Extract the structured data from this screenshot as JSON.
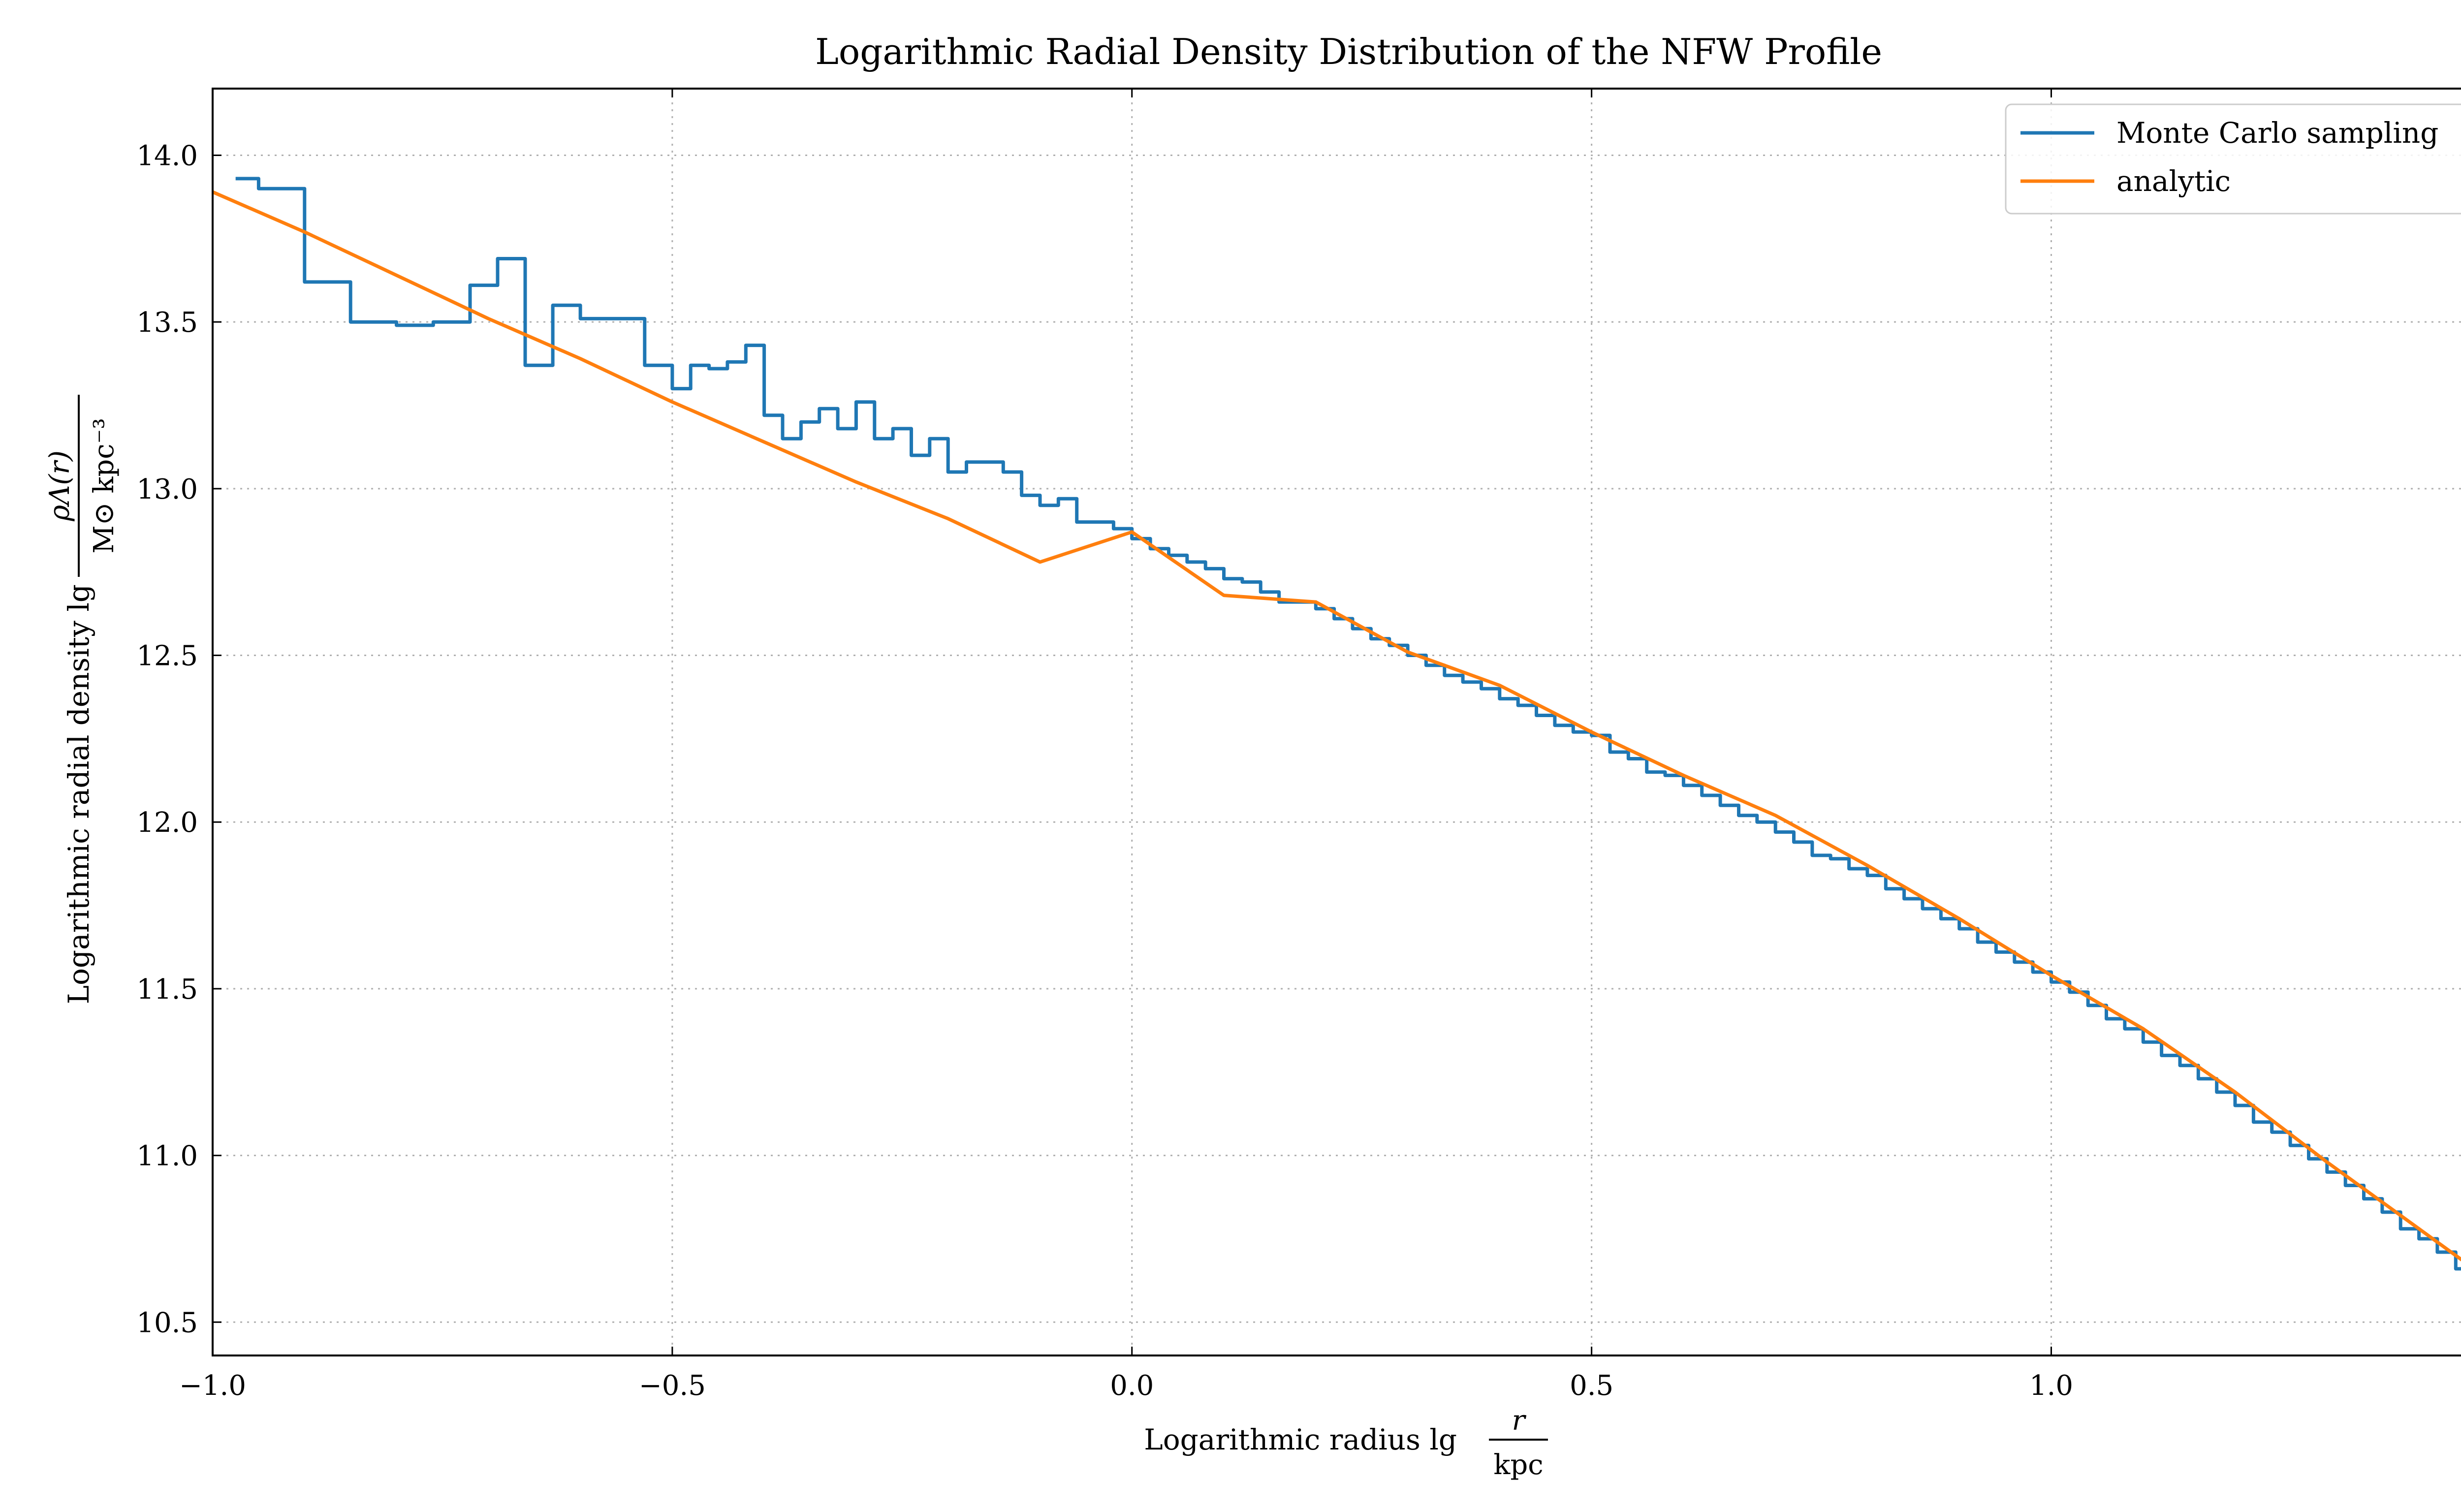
{
  "chart_data": {
    "type": "line",
    "title": "Logarithmic Radial Density Distribution of the NFW Profile",
    "xlabel_prefix": "Logarithmic radius lg",
    "xlabel_numerator": "r",
    "xlabel_denominator": "kpc",
    "ylabel_prefix": "Logarithmic radial density lg",
    "ylabel_numerator": "ρΛ(r)",
    "ylabel_denominator": "M⊙ kpc⁻³",
    "xlim": [
      -1.0,
      1.48
    ],
    "ylim": [
      10.4,
      14.2
    ],
    "x_ticks": [
      -1.0,
      -0.5,
      0.0,
      0.5,
      1.0
    ],
    "x_tick_labels": [
      "−1.0",
      "−0.5",
      "0.0",
      "0.5",
      "1.0"
    ],
    "y_ticks": [
      10.5,
      11.0,
      11.5,
      12.0,
      12.5,
      13.0,
      13.5,
      14.0
    ],
    "y_tick_labels": [
      "10.5",
      "11.0",
      "11.5",
      "12.0",
      "12.5",
      "13.0",
      "13.5",
      "14.0"
    ],
    "grid": true,
    "legend_position": "top-right",
    "series": [
      {
        "name": "Monte Carlo sampling",
        "color": "#1f77b4",
        "style": "step",
        "x": [
          -0.975,
          -0.95,
          -0.9,
          -0.85,
          -0.8,
          -0.76,
          -0.72,
          -0.69,
          -0.66,
          -0.63,
          -0.6,
          -0.56,
          -0.53,
          -0.5,
          -0.48,
          -0.46,
          -0.44,
          -0.42,
          -0.4,
          -0.38,
          -0.36,
          -0.34,
          -0.32,
          -0.3,
          -0.28,
          -0.26,
          -0.24,
          -0.22,
          -0.2,
          -0.18,
          -0.16,
          -0.14,
          -0.12,
          -0.1,
          -0.08,
          -0.06,
          -0.04,
          -0.02,
          0.0,
          0.02,
          0.04,
          0.06,
          0.08,
          0.1,
          0.12,
          0.14,
          0.16,
          0.18,
          0.2,
          0.22,
          0.24,
          0.26,
          0.28,
          0.3,
          0.32,
          0.34,
          0.36,
          0.38,
          0.4,
          0.42,
          0.44,
          0.46,
          0.48,
          0.5,
          0.52,
          0.54,
          0.56,
          0.58,
          0.6,
          0.62,
          0.64,
          0.66,
          0.68,
          0.7,
          0.72,
          0.74,
          0.76,
          0.78,
          0.8,
          0.82,
          0.84,
          0.86,
          0.88,
          0.9,
          0.92,
          0.94,
          0.96,
          0.98,
          1.0,
          1.02,
          1.04,
          1.06,
          1.08,
          1.1,
          1.12,
          1.14,
          1.16,
          1.18,
          1.2,
          1.22,
          1.24,
          1.26,
          1.28,
          1.3,
          1.32,
          1.34,
          1.36,
          1.38,
          1.4,
          1.42,
          1.44,
          1.46,
          1.48
        ],
        "y": [
          13.93,
          13.9,
          13.62,
          13.5,
          13.49,
          13.5,
          13.61,
          13.69,
          13.37,
          13.55,
          13.51,
          13.51,
          13.37,
          13.3,
          13.37,
          13.36,
          13.38,
          13.43,
          13.22,
          13.15,
          13.2,
          13.24,
          13.18,
          13.26,
          13.15,
          13.18,
          13.1,
          13.15,
          13.05,
          13.08,
          13.08,
          13.05,
          12.98,
          12.95,
          12.97,
          12.9,
          12.9,
          12.88,
          12.85,
          12.82,
          12.8,
          12.78,
          12.76,
          12.73,
          12.72,
          12.69,
          12.66,
          12.66,
          12.64,
          12.61,
          12.58,
          12.55,
          12.53,
          12.5,
          12.47,
          12.44,
          12.42,
          12.4,
          12.37,
          12.35,
          12.32,
          12.29,
          12.27,
          12.26,
          12.21,
          12.19,
          12.15,
          12.14,
          12.11,
          12.08,
          12.05,
          12.02,
          12.0,
          11.97,
          11.94,
          11.9,
          11.89,
          11.86,
          11.84,
          11.8,
          11.77,
          11.74,
          11.71,
          11.68,
          11.64,
          11.61,
          11.58,
          11.55,
          11.52,
          11.49,
          11.45,
          11.41,
          11.38,
          11.34,
          11.3,
          11.27,
          11.23,
          11.19,
          11.15,
          11.1,
          11.07,
          11.03,
          10.99,
          10.95,
          10.91,
          10.87,
          10.83,
          10.78,
          10.75,
          10.71,
          10.66,
          10.63,
          10.59
        ]
      },
      {
        "name": "analytic",
        "color": "#ff7f0e",
        "style": "line",
        "x": [
          -1.0,
          -0.9,
          -0.8,
          -0.7,
          -0.6,
          -0.5,
          -0.4,
          -0.3,
          -0.2,
          -0.1,
          0.0,
          0.1,
          0.2,
          0.3,
          0.4,
          0.5,
          0.6,
          0.7,
          0.8,
          0.9,
          1.0,
          1.1,
          1.2,
          1.3,
          1.4,
          1.48
        ],
        "y": [
          13.89,
          13.77,
          13.64,
          13.51,
          13.39,
          13.26,
          13.14,
          13.02,
          12.91,
          12.78,
          12.87,
          12.68,
          12.66,
          12.51,
          12.41,
          12.27,
          12.14,
          12.02,
          11.87,
          11.71,
          11.54,
          11.38,
          11.19,
          10.98,
          10.78,
          10.62
        ]
      }
    ]
  }
}
